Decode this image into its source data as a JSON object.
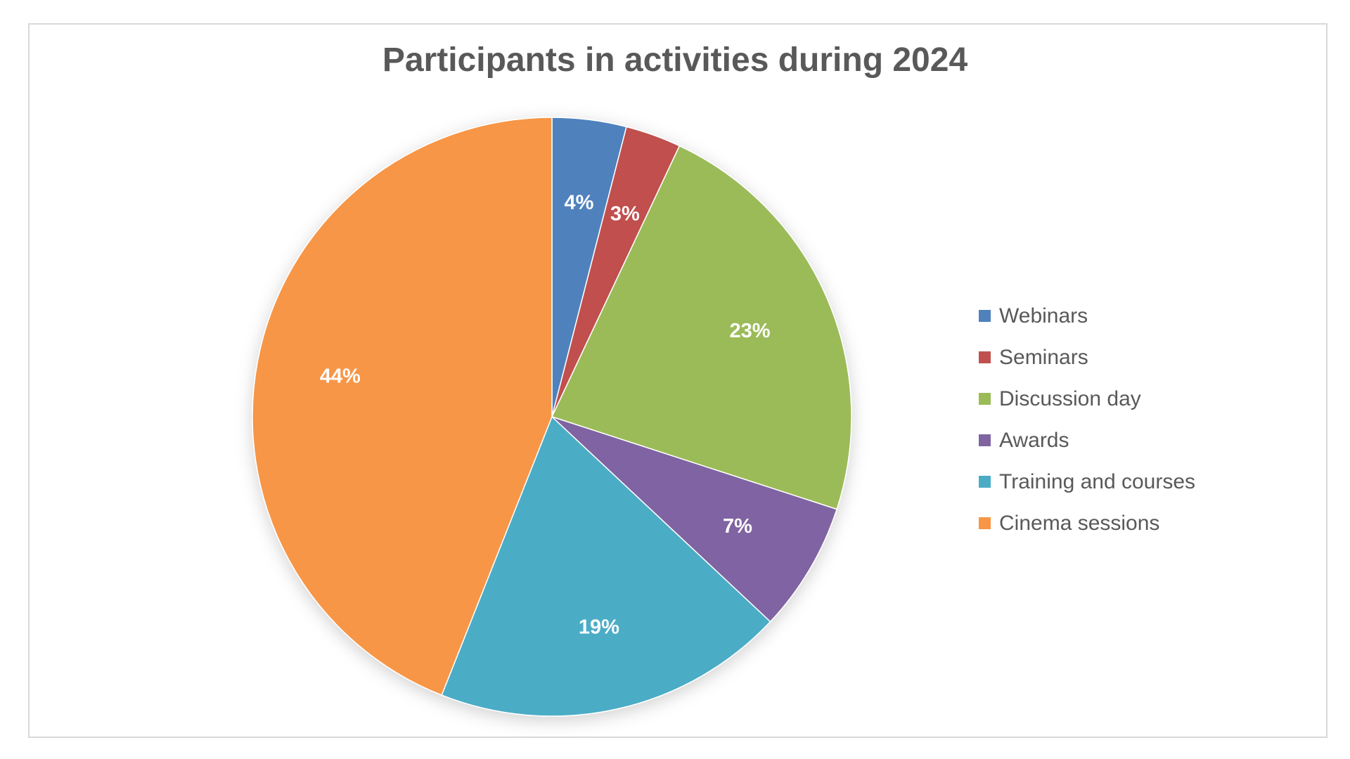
{
  "chart_data": {
    "type": "pie",
    "title": "Participants in activities during 2024",
    "categories": [
      "Webinars",
      "Seminars",
      "Discussion day",
      "Awards",
      "Training and courses",
      "Cinema sessions"
    ],
    "values": [
      4,
      3,
      23,
      7,
      19,
      44
    ],
    "labels": [
      "4%",
      "3%",
      "23%",
      "7%",
      "19%",
      "44%"
    ],
    "colors": [
      "#4f81bd",
      "#c0504d",
      "#9bbb59",
      "#8064a2",
      "#4bacc6",
      "#f79646"
    ],
    "legend_position": "right"
  }
}
